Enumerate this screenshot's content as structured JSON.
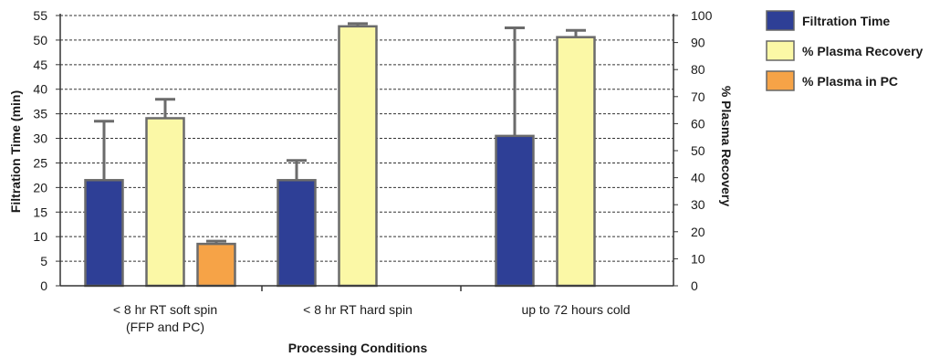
{
  "chart_data": {
    "type": "bar",
    "categories": [
      [
        "< 8 hr RT soft spin",
        "(FFP and PC)"
      ],
      [
        "< 8 hr RT hard spin"
      ],
      [
        "up to 72 hours cold"
      ]
    ],
    "xlabel": "Processing Conditions",
    "ylabel": "Filtration Time (min)",
    "y2label": "% Plasma Recovery",
    "ylim": [
      0,
      55
    ],
    "y2lim": [
      0,
      100
    ],
    "yticks": [
      0,
      5,
      10,
      15,
      20,
      25,
      30,
      35,
      40,
      45,
      50,
      55
    ],
    "y2ticks": [
      0,
      10,
      20,
      30,
      40,
      50,
      60,
      70,
      80,
      90,
      100
    ],
    "grid": "horizontal dashed",
    "legend_position": "right",
    "series": [
      {
        "name": "Filtration Time",
        "axis": "left",
        "color": "#2e3f96",
        "values": [
          21.5,
          21.5,
          30.5
        ],
        "error_upper": [
          33.5,
          25.5,
          52.5
        ]
      },
      {
        "name": "% Plasma Recovery",
        "axis": "right",
        "color": "#fbf8a6",
        "values": [
          62,
          96,
          92
        ],
        "error_upper": [
          69,
          97,
          94.5
        ]
      },
      {
        "name": "% Plasma in PC",
        "axis": "right",
        "color": "#f6a347",
        "values": [
          15.5,
          null,
          null
        ],
        "error_upper": [
          16.5,
          null,
          null
        ]
      }
    ]
  }
}
